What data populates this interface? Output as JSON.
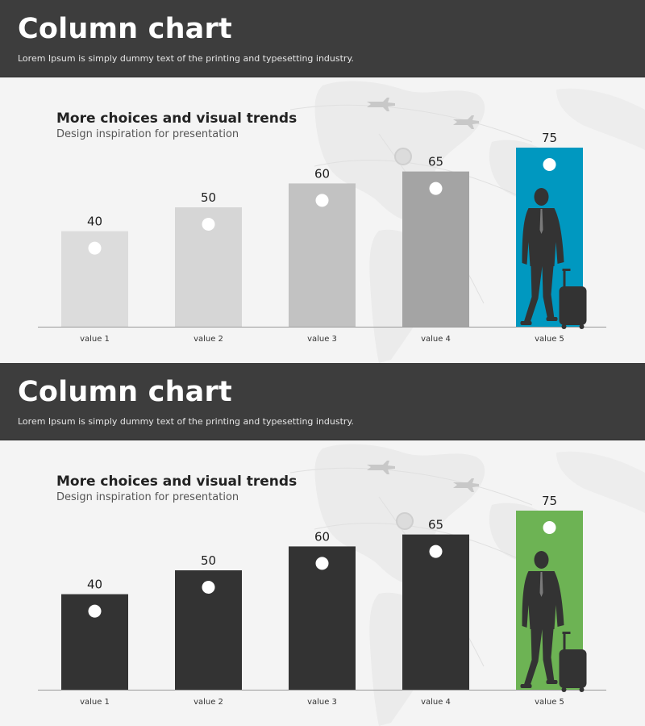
{
  "panels": [
    {
      "header": {
        "title": "Column chart",
        "subtitle": "Lorem Ipsum is simply dummy text of the printing and typesetting industry."
      },
      "chart_data": {
        "type": "bar",
        "title": "More choices and visual trends",
        "subtitle": "Design inspiration for presentation",
        "categories": [
          "value 1",
          "value 2",
          "value 3",
          "value 4",
          "value 5"
        ],
        "values": [
          40,
          50,
          60,
          65,
          75
        ],
        "ylim": [
          0,
          75
        ],
        "grid": false,
        "legend": "none",
        "colors": [
          "#dcdcdc",
          "#d6d6d6",
          "#c2c2c2",
          "#a4a4a4",
          "#0098c0"
        ],
        "highlight_index": 4,
        "highlight_icon": "traveler-with-suitcase-icon"
      }
    },
    {
      "header": {
        "title": "Column chart",
        "subtitle": "Lorem Ipsum is simply dummy text of the printing and typesetting industry."
      },
      "chart_data": {
        "type": "bar",
        "title": "More choices and visual trends",
        "subtitle": "Design inspiration for presentation",
        "categories": [
          "value 1",
          "value 2",
          "value 3",
          "value 4",
          "value 5"
        ],
        "values": [
          40,
          50,
          60,
          65,
          75
        ],
        "ylim": [
          0,
          75
        ],
        "grid": false,
        "legend": "none",
        "colors": [
          "#333333",
          "#333333",
          "#333333",
          "#333333",
          "#6db354"
        ],
        "highlight_index": 4,
        "highlight_icon": "traveler-with-suitcase-icon"
      }
    }
  ]
}
